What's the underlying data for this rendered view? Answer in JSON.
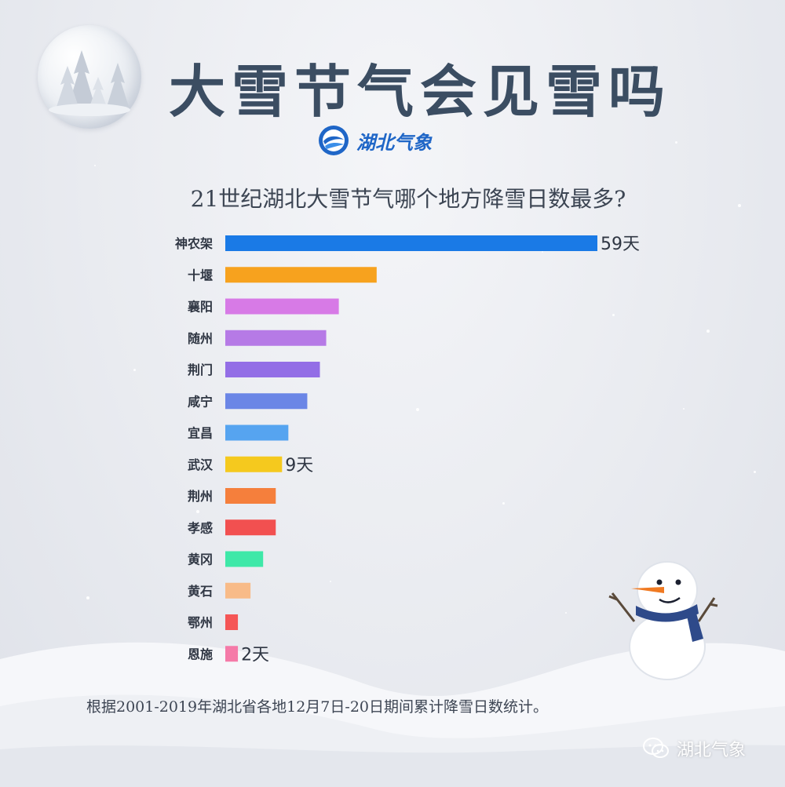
{
  "title": "大雪节气会见雪吗",
  "logo": {
    "text": "湖北气象",
    "icon": "hubei-weather-logo-icon",
    "color": "#1f66c7"
  },
  "subtitle": "21世纪湖北大雪节气哪个地方降雪日数最多?",
  "chart_data": {
    "type": "bar",
    "orientation": "horizontal",
    "title": "21世纪湖北大雪节气哪个地方降雪日数最多?",
    "xlabel": "",
    "ylabel": "",
    "unit": "天",
    "grid": false,
    "categories": [
      "神农架",
      "十堰",
      "襄阳",
      "随州",
      "荆门",
      "咸宁",
      "宜昌",
      "武汉",
      "荆州",
      "孝感",
      "黄冈",
      "黄石",
      "鄂州",
      "恩施"
    ],
    "values": [
      59,
      24,
      18,
      16,
      15,
      13,
      10,
      9,
      8,
      8,
      6,
      4,
      2,
      2
    ],
    "data_labels": {
      "神农架": "59天",
      "武汉": "9天",
      "恩施": "2天"
    },
    "colors": [
      "#1a7ae6",
      "#f7a21e",
      "#d77ae6",
      "#b67ae6",
      "#936ee6",
      "#6b86e6",
      "#56a4f0",
      "#f5c91e",
      "#f57f3c",
      "#f25050",
      "#3ee8a8",
      "#f8bb88",
      "#f55656",
      "#f57aa8"
    ],
    "xlim": [
      0,
      59
    ]
  },
  "footer": "根据2001-2019年湖北省各地12月7日-20日期间累计降雪日数统计。",
  "wechat": {
    "text": "湖北气象",
    "icon": "wechat-icon"
  },
  "decor": {
    "snowglobe": "snow-globe-icon",
    "snowman": "snowman-icon",
    "hills": "snow-hills"
  }
}
